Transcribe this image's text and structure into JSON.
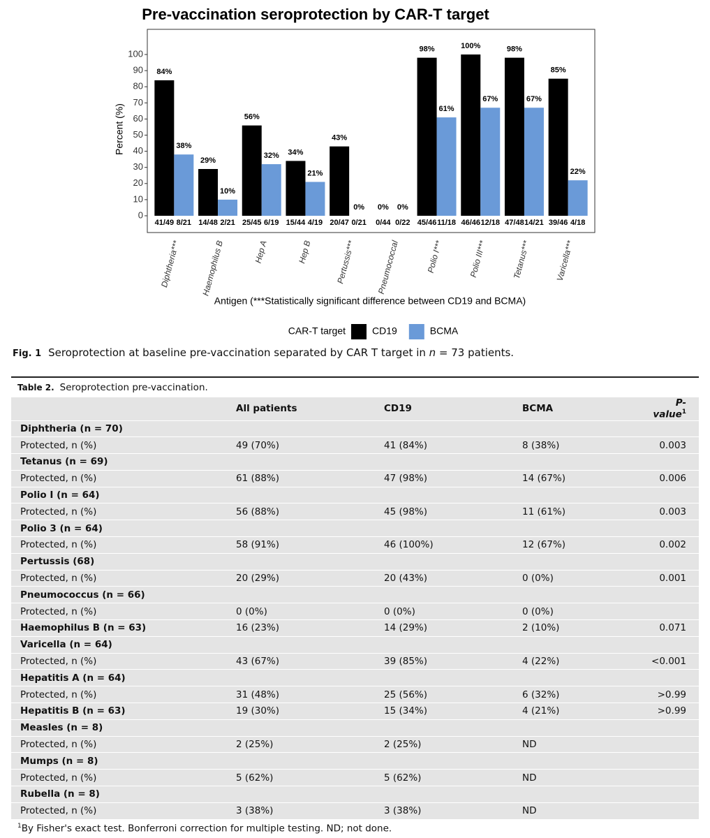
{
  "chart_data": {
    "type": "bar",
    "title": "Pre-vaccination seroprotection by CAR-T target",
    "ylabel": "Percent (%)",
    "xlabel": "Antigen (***Statistically significant difference between CD19 and BCMA)",
    "legend_title": "CAR-T target",
    "categories": [
      "Diphtheria***",
      "Haemophilus B",
      "Hep A",
      "Hep B",
      "Pertussis***",
      "Pneumococcal",
      "Polio I***",
      "Polio III***",
      "Tetanus***",
      "Varicella***"
    ],
    "series": [
      {
        "name": "CD19",
        "color": "#000000",
        "values": [
          84,
          29,
          56,
          34,
          43,
          0,
          98,
          100,
          98,
          85
        ],
        "value_labels": [
          "84%",
          "29%",
          "56%",
          "34%",
          "43%",
          "0%",
          "98%",
          "100%",
          "98%",
          "85%"
        ],
        "counts": [
          "41/49",
          "14/48",
          "25/45",
          "15/44",
          "20/47",
          "0/44",
          "45/46",
          "46/46",
          "47/48",
          "39/46"
        ]
      },
      {
        "name": "BCMA",
        "color": "#6a9ad8",
        "values": [
          38,
          10,
          32,
          21,
          0,
          0,
          61,
          67,
          67,
          22
        ],
        "value_labels": [
          "38%",
          "10%",
          "32%",
          "21%",
          "0%",
          "0%",
          "61%",
          "67%",
          "67%",
          "22%"
        ],
        "counts": [
          "8/21",
          "2/21",
          "6/19",
          "4/19",
          "0/21",
          "0/22",
          "11/18",
          "12/18",
          "14/21",
          "4/18"
        ]
      }
    ],
    "ylim": [
      -10.4,
      115.6
    ],
    "yticks": [
      0,
      10,
      20,
      30,
      40,
      50,
      60,
      70,
      80,
      90,
      100
    ],
    "grid": false
  },
  "figure_caption": {
    "label": "Fig. 1",
    "text_before": "Seroprotection at baseline pre-vaccination separated by CAR T target in ",
    "italic": "n",
    "text_after": " = 73 patients."
  },
  "table": {
    "label": "Table 2.",
    "title": "Seroprotection pre-vaccination.",
    "header": [
      "All patients",
      "CD19",
      "BCMA",
      "P-value"
    ],
    "header_mark": "1",
    "rows": [
      {
        "heading": "Diphtheria (n = 70)"
      },
      {
        "label": "Protected, n (%)",
        "values": [
          "49 (70%)",
          "41 (84%)",
          "8 (38%)",
          "0.003"
        ]
      },
      {
        "heading": "Tetanus (n = 69)"
      },
      {
        "label": "Protected, n (%)",
        "values": [
          "61 (88%)",
          "47 (98%)",
          "14 (67%)",
          "0.006"
        ]
      },
      {
        "heading": "Polio I (n = 64)"
      },
      {
        "label": "Protected, n (%)",
        "values": [
          "56 (88%)",
          "45 (98%)",
          "11 (61%)",
          "0.003"
        ]
      },
      {
        "heading": "Polio 3 (n = 64)"
      },
      {
        "label": "Protected, n (%)",
        "values": [
          "58 (91%)",
          "46 (100%)",
          "12 (67%)",
          "0.002"
        ]
      },
      {
        "heading": "Pertussis (68)"
      },
      {
        "label": "Protected, n (%)",
        "values": [
          "20 (29%)",
          "20 (43%)",
          "0 (0%)",
          "0.001"
        ]
      },
      {
        "heading": "Pneumococcus (n = 66)"
      },
      {
        "label": "Protected, n (%)",
        "values": [
          "0 (0%)",
          "0 (0%)",
          "0 (0%)"
        ]
      },
      {
        "heading": "Haemophilus B (n = 63)",
        "values": [
          "16 (23%)",
          "14 (29%)",
          "2 (10%)",
          "0.071"
        ]
      },
      {
        "heading": "Varicella (n = 64)"
      },
      {
        "label": "Protected, n (%)",
        "values": [
          "43 (67%)",
          "39 (85%)",
          "4 (22%)",
          "<0.001"
        ]
      },
      {
        "heading": "Hepatitis A (n = 64)"
      },
      {
        "label": "Protected, n (%)",
        "values": [
          "31 (48%)",
          "25 (56%)",
          "6 (32%)",
          ">0.99"
        ]
      },
      {
        "heading": "Hepatitis B (n = 63)",
        "values": [
          "19 (30%)",
          "15 (34%)",
          "4 (21%)",
          ">0.99"
        ]
      },
      {
        "heading": "Measles (n = 8)"
      },
      {
        "label": "Protected, n (%)",
        "values": [
          "2 (25%)",
          "2 (25%)",
          "ND"
        ]
      },
      {
        "heading": "Mumps (n = 8)"
      },
      {
        "label": "Protected, n (%)",
        "values": [
          "5 (62%)",
          "5 (62%)",
          "ND"
        ]
      },
      {
        "heading": "Rubella (n = 8)"
      },
      {
        "label": "Protected, n (%)",
        "values": [
          "3 (38%)",
          "3 (38%)",
          "ND"
        ]
      }
    ],
    "footnote_mark": "1",
    "footnote": "By Fisher's exact test. Bonferroni correction for multiple testing. ND; not done."
  }
}
